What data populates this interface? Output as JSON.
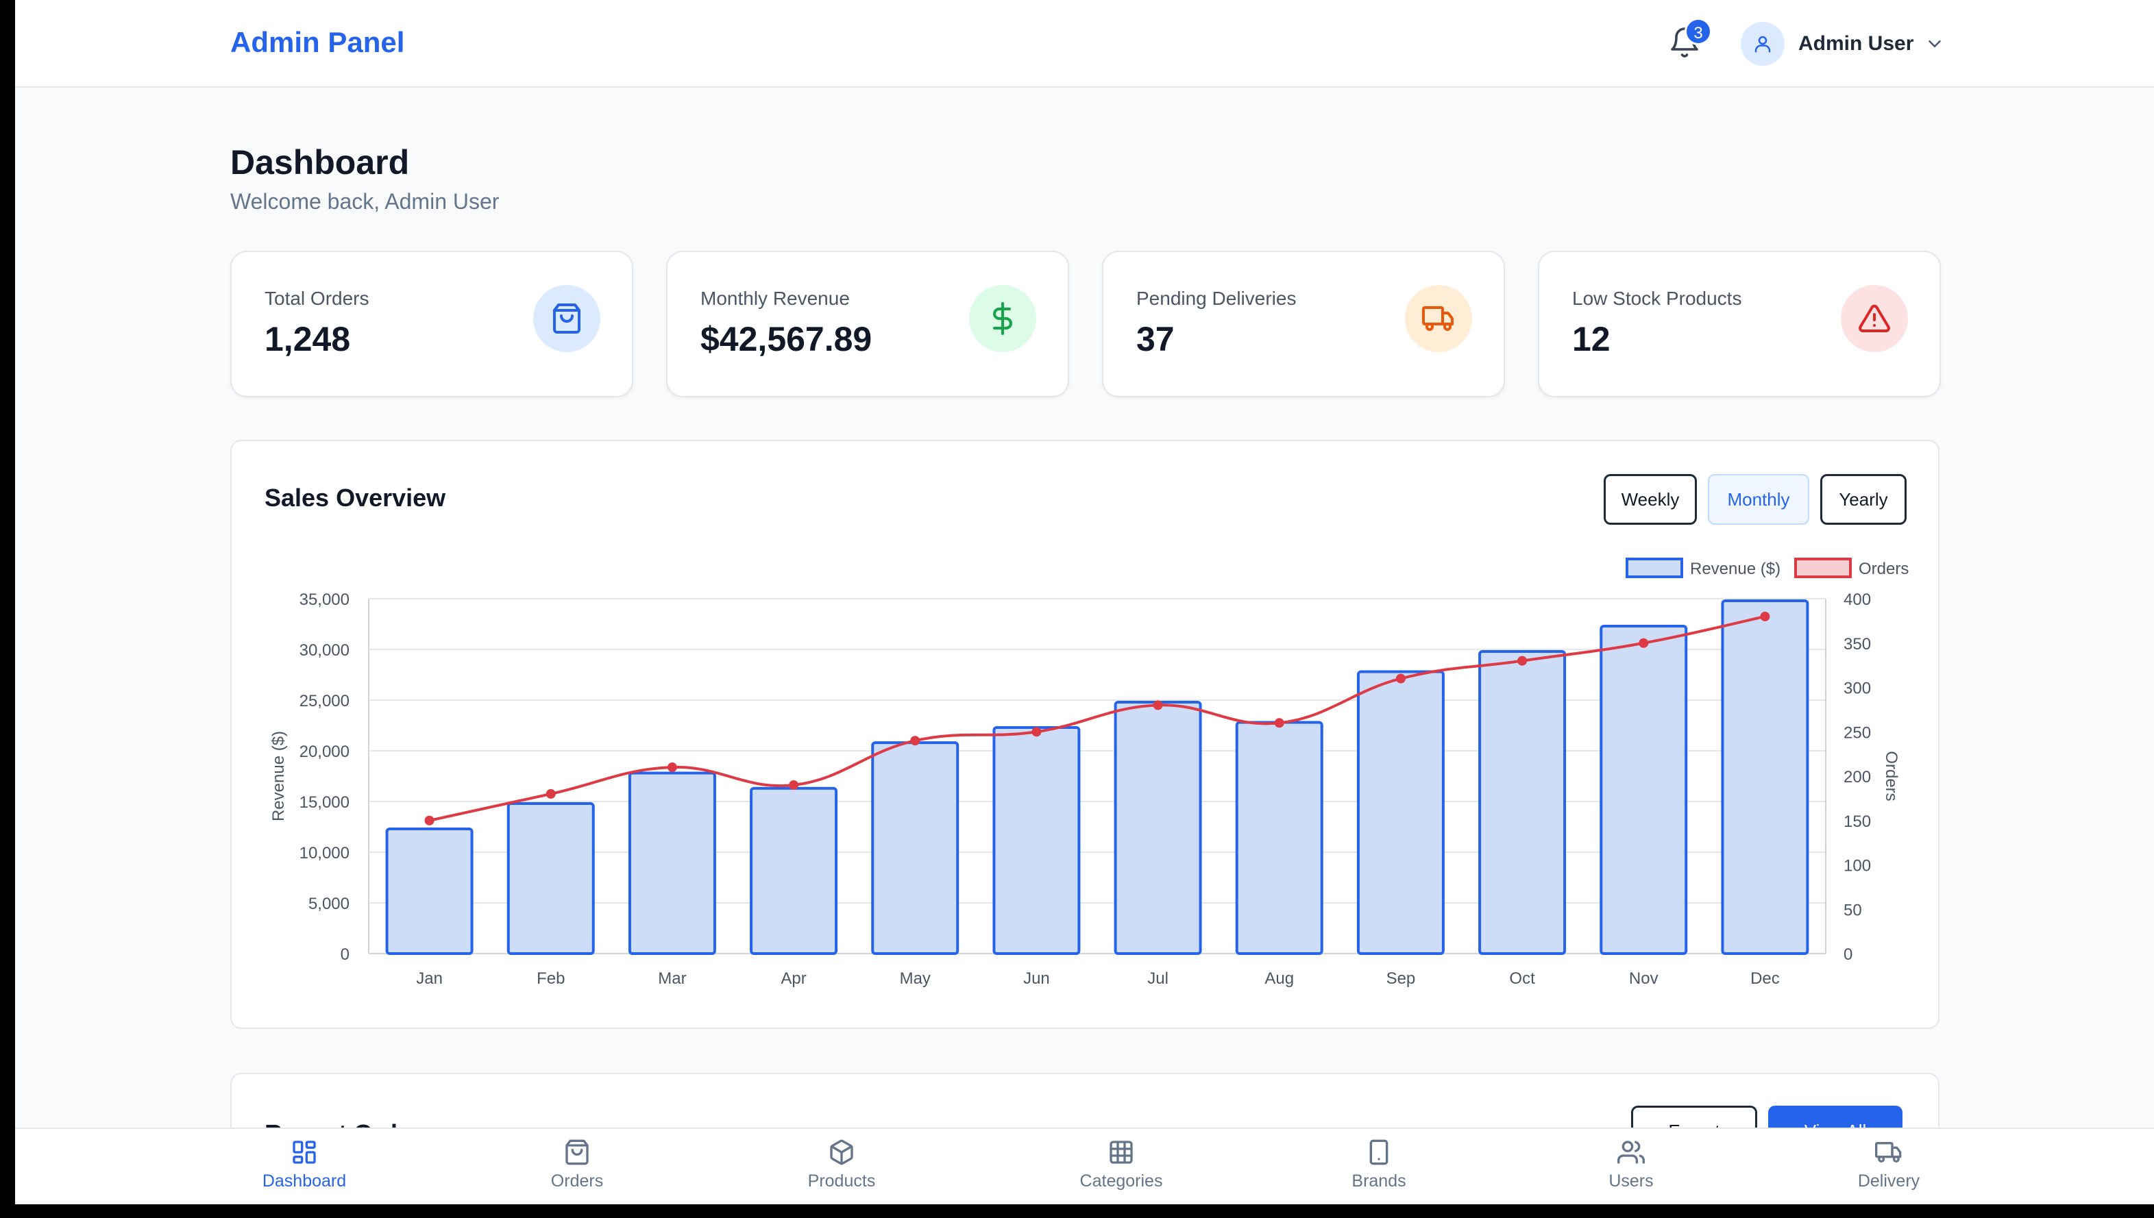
{
  "header": {
    "brand": "Admin Panel",
    "notification_count": "3",
    "user_name": "Admin User"
  },
  "page": {
    "title": "Dashboard",
    "subtitle": "Welcome back, Admin User"
  },
  "stats": [
    {
      "label": "Total Orders",
      "value": "1,248",
      "icon": "shopping-bag-icon",
      "bg": "#dbeafe",
      "color": "#2563eb"
    },
    {
      "label": "Monthly Revenue",
      "value": "$42,567.89",
      "icon": "dollar-icon",
      "bg": "#dcfce7",
      "color": "#16a34a"
    },
    {
      "label": "Pending Deliveries",
      "value": "37",
      "icon": "truck-icon",
      "bg": "#ffedd5",
      "color": "#ea580c"
    },
    {
      "label": "Low Stock Products",
      "value": "12",
      "icon": "alert-triangle-icon",
      "bg": "#fee2e2",
      "color": "#dc2626"
    }
  ],
  "sales": {
    "title": "Sales Overview",
    "periods": {
      "weekly": "Weekly",
      "monthly": "Monthly",
      "yearly": "Yearly"
    },
    "selected_period": "Monthly"
  },
  "chart_data": {
    "type": "bar",
    "categories": [
      "Jan",
      "Feb",
      "Mar",
      "Apr",
      "May",
      "Jun",
      "Jul",
      "Aug",
      "Sep",
      "Oct",
      "Nov",
      "Dec"
    ],
    "series": [
      {
        "name": "Revenue ($)",
        "type": "bar",
        "axis": "left",
        "color": "#2563eb",
        "fill": "#cddcf7",
        "values": [
          12300,
          14800,
          17800,
          16300,
          20800,
          22300,
          24800,
          22800,
          27800,
          29800,
          32300,
          34800
        ]
      },
      {
        "name": "Orders",
        "type": "line",
        "axis": "right",
        "color": "#dc3b45",
        "values": [
          150,
          180,
          210,
          190,
          240,
          250,
          280,
          260,
          310,
          330,
          350,
          380
        ]
      }
    ],
    "ylabel": "Revenue ($)",
    "y2label": "Orders",
    "ylim": [
      0,
      35000
    ],
    "y2lim": [
      0,
      400
    ],
    "yticks": [
      "0",
      "5,000",
      "10,000",
      "15,000",
      "20,000",
      "25,000",
      "30,000",
      "35,000"
    ],
    "y2ticks": [
      "0",
      "50",
      "100",
      "150",
      "200",
      "250",
      "300",
      "350",
      "400"
    ],
    "grid": true,
    "legend": "top-right"
  },
  "recent_orders": {
    "title": "Recent Orders",
    "export_label": "Export",
    "view_all_label": "View All"
  },
  "bottom_nav": [
    {
      "label": "Dashboard",
      "icon": "dashboard-icon",
      "active": true
    },
    {
      "label": "Orders",
      "icon": "shopping-bag-icon",
      "active": false
    },
    {
      "label": "Products",
      "icon": "package-icon",
      "active": false
    },
    {
      "label": "Categories",
      "icon": "grid-icon",
      "active": false
    },
    {
      "label": "Brands",
      "icon": "tablet-icon",
      "active": false
    },
    {
      "label": "Users",
      "icon": "users-icon",
      "active": false
    },
    {
      "label": "Delivery",
      "icon": "truck-icon",
      "active": false
    }
  ]
}
